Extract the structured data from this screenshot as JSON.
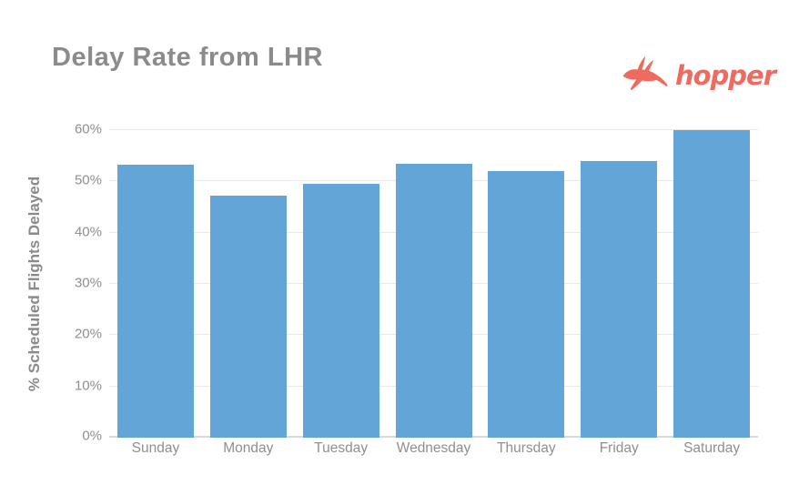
{
  "header": {
    "title": "Delay Rate from LHR",
    "title_color": "#8B8B8B"
  },
  "logo": {
    "brand": "hopper",
    "icon": "hopper-rabbit-icon",
    "color": "#EF6A5F"
  },
  "chart_data": {
    "type": "bar",
    "title": "Delay Rate from LHR",
    "categories": [
      "Sunday",
      "Monday",
      "Tuesday",
      "Wednesday",
      "Thursday",
      "Friday",
      "Saturday"
    ],
    "values": [
      53.2,
      47.3,
      49.6,
      53.5,
      52.0,
      54.0,
      60.0
    ],
    "xlabel": "",
    "ylabel": "% Scheduled Flights Delayed",
    "ylim": [
      0,
      60
    ],
    "yticks": [
      "0%",
      "10%",
      "20%",
      "30%",
      "40%",
      "50%",
      "60%"
    ],
    "ytick_values": [
      0,
      10,
      20,
      30,
      40,
      50,
      60
    ],
    "grid": true,
    "legend": "none",
    "bar_color": "#64A5D8",
    "gridline_color": "#E9E9E9",
    "baseline_color": "#DADADA",
    "tick_label_color": "#8F8F8F"
  }
}
